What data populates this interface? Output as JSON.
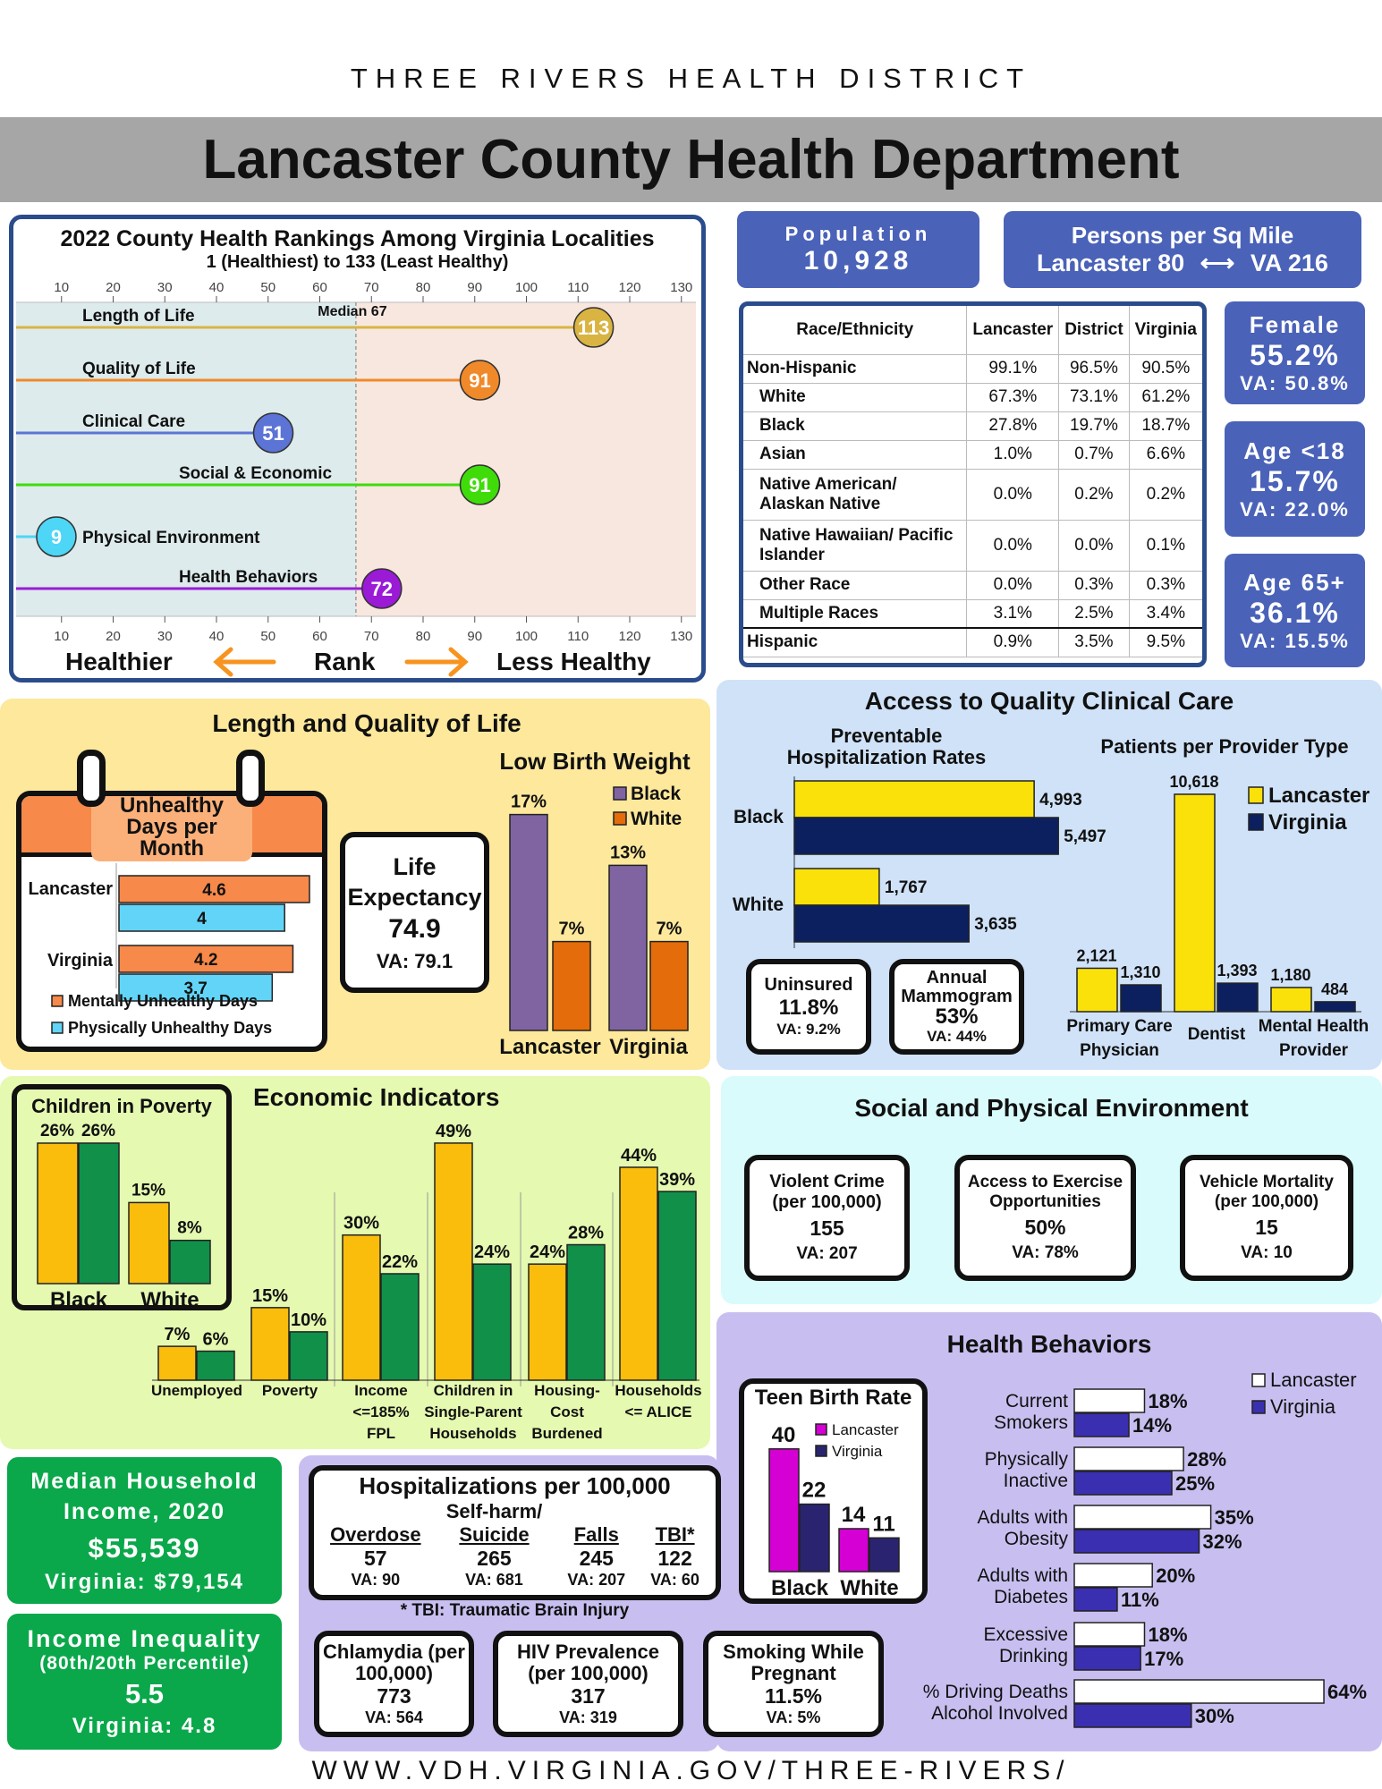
{
  "header": {
    "district": "THREE RIVERS HEALTH DISTRICT",
    "title": "Lancaster County Health Department"
  },
  "footer": {
    "url": "WWW.VDH.VIRGINIA.GOV/THREE-RIVERS/"
  },
  "population": {
    "label": "Population",
    "value": "10,928"
  },
  "density": {
    "label": "Persons per Sq Mile",
    "lancaster": "Lancaster 80",
    "arrow": "⟷",
    "va": "VA 216"
  },
  "demographics": [
    {
      "label": "Female",
      "value": "55.2%",
      "va": "VA: 50.8%"
    },
    {
      "label": "Age <18",
      "value": "15.7%",
      "va": "VA: 22.0%"
    },
    {
      "label": "Age 65+",
      "value": "36.1%",
      "va": "VA: 15.5%"
    }
  ],
  "race_table": {
    "headers": [
      "Race/Ethnicity",
      "Lancaster",
      "District",
      "Virginia"
    ],
    "rows": [
      {
        "label": "Non-Hispanic",
        "values": [
          "99.1%",
          "96.5%",
          "90.5%"
        ],
        "indent": false
      },
      {
        "label": "White",
        "values": [
          "67.3%",
          "73.1%",
          "61.2%"
        ],
        "indent": true
      },
      {
        "label": "Black",
        "values": [
          "27.8%",
          "19.7%",
          "18.7%"
        ],
        "indent": true
      },
      {
        "label": "Asian",
        "values": [
          "1.0%",
          "0.7%",
          "6.6%"
        ],
        "indent": true
      },
      {
        "label": "Native American/ Alaskan Native",
        "values": [
          "0.0%",
          "0.2%",
          "0.2%"
        ],
        "indent": true
      },
      {
        "label": "Native Hawaiian/ Pacific Islander",
        "values": [
          "0.0%",
          "0.0%",
          "0.1%"
        ],
        "indent": true
      },
      {
        "label": "Other Race",
        "values": [
          "0.0%",
          "0.3%",
          "0.3%"
        ],
        "indent": true
      },
      {
        "label": "Multiple Races",
        "values": [
          "3.1%",
          "2.5%",
          "3.4%"
        ],
        "indent": true
      },
      {
        "label": "Hispanic",
        "values": [
          "0.9%",
          "3.5%",
          "9.5%"
        ],
        "indent": false
      }
    ]
  },
  "rankings": {
    "legend_left": "Healthier",
    "legend_center": "Rank",
    "legend_right": "Less Healthy",
    "arrow_color": "#f7931e"
  },
  "length_quality": {
    "title": "Length and Quality of Life",
    "life_expectancy": {
      "label": "Life Expectancy",
      "value": "74.9",
      "va": "VA: 79.1"
    }
  },
  "clinical_care": {
    "title": "Access to Quality Clinical Care",
    "uninsured": {
      "label": "Uninsured",
      "value": "11.8%",
      "va": "VA: 9.2%"
    },
    "mammogram": {
      "label": "Annual Mammogram",
      "value": "53%",
      "va": "VA: 44%"
    }
  },
  "economic": {
    "title": "Economic Indicators"
  },
  "social_env": {
    "title": "Social and Physical Environment",
    "items": [
      {
        "label": "Violent Crime (per 100,000)",
        "value": "155",
        "va": "VA: 207"
      },
      {
        "label": "Access to Exercise Opportunities",
        "value": "50%",
        "va": "VA: 78%"
      },
      {
        "label": "Vehicle Mortality (per 100,000)",
        "value": "15",
        "va": "VA: 10"
      }
    ]
  },
  "income": {
    "label": "Median Household Income, 2020",
    "value": "$55,539",
    "va": "Virginia: $79,154"
  },
  "inequality": {
    "label": "Income Inequality",
    "sub": "(80th/20th Percentile)",
    "value": "5.5",
    "va": "Virginia: 4.8"
  },
  "hospitalizations": {
    "title": "Hospitalizations per 100,000",
    "note": "* TBI: Traumatic Brain Injury",
    "items": [
      {
        "top": "",
        "label": "Overdose",
        "value": "57",
        "va": "VA: 90"
      },
      {
        "top": "Self-harm/",
        "label": "Suicide",
        "value": "265",
        "va": "VA: 681"
      },
      {
        "top": "",
        "label": "Falls",
        "value": "245",
        "va": "VA: 207"
      },
      {
        "top": "",
        "label": "TBI*",
        "value": "122",
        "va": "VA: 60"
      }
    ]
  },
  "other_boxes": [
    {
      "label": "Chlamydia (per 100,000)",
      "value": "773",
      "va": "VA: 564"
    },
    {
      "label": "HIV Prevalence (per 100,000)",
      "value": "317",
      "va": "VA: 319"
    },
    {
      "label": "Smoking While Pregnant",
      "value": "11.5%",
      "va": "VA: 5%"
    }
  ],
  "health_behaviors": {
    "title": "Health Behaviors"
  },
  "chart_data": [
    {
      "type": "bar",
      "orientation": "horizontal-lollipop",
      "title": "2022 County Health Rankings Among Virginia Localities",
      "subtitle": "1 (Healthiest) to 133 (Least Healthy)",
      "categories": [
        "Length of Life",
        "Quality of Life",
        "Clinical Care",
        "Social & Economic",
        "Physical Environment",
        "Health Behaviors"
      ],
      "values": [
        113,
        91,
        51,
        91,
        9,
        72
      ],
      "colors": [
        "#d9b443",
        "#f0892a",
        "#5b74d6",
        "#3fdc0a",
        "#4dd6f5",
        "#9a1ad6"
      ],
      "median": 67,
      "median_label": "Median 67",
      "xlim": [
        1,
        133
      ],
      "xticks": [
        10,
        20,
        30,
        40,
        50,
        60,
        70,
        80,
        90,
        100,
        110,
        120,
        130
      ]
    },
    {
      "type": "bar",
      "orientation": "horizontal",
      "title": "Unhealthy Days per Month",
      "categories": [
        "Lancaster",
        "Virginia"
      ],
      "series": [
        {
          "name": "Mentally Unhealthy Days",
          "values": [
            4.6,
            4.2
          ],
          "color": "#f7894a"
        },
        {
          "name": "Physically Unhealthy Days",
          "values": [
            4.0,
            3.7
          ],
          "color": "#62d4f8"
        }
      ]
    },
    {
      "type": "bar",
      "title": "Low Birth Weight",
      "categories": [
        "Lancaster",
        "Virginia"
      ],
      "series": [
        {
          "name": "Black",
          "values": [
            17,
            13
          ],
          "labels": [
            "17%",
            "13%"
          ],
          "color": "#8064a2"
        },
        {
          "name": "White",
          "values": [
            7,
            7
          ],
          "labels": [
            "7%",
            "7%"
          ],
          "color": "#e46c0a"
        }
      ]
    },
    {
      "type": "bar",
      "orientation": "horizontal",
      "title": "Preventable Hospitalization Rates",
      "categories": [
        "Black",
        "White"
      ],
      "series": [
        {
          "name": "Lancaster",
          "values": [
            4993,
            1767
          ],
          "labels": [
            "4,993",
            "1,767"
          ],
          "color": "#fbe10a"
        },
        {
          "name": "Virginia",
          "values": [
            5497,
            3635
          ],
          "labels": [
            "5,497",
            "3,635"
          ],
          "color": "#0c2060"
        }
      ]
    },
    {
      "type": "bar",
      "title": "Patients per Provider Type",
      "categories": [
        [
          "Primary Care",
          "Physician"
        ],
        [
          "Dentist"
        ],
        [
          "Mental Health",
          "Provider"
        ]
      ],
      "series": [
        {
          "name": "Lancaster",
          "values": [
            2121,
            10618,
            1180
          ],
          "labels": [
            "2,121",
            "10,618",
            "1,180"
          ],
          "color": "#fbe10a"
        },
        {
          "name": "Virginia",
          "values": [
            1310,
            1393,
            484
          ],
          "labels": [
            "1,310",
            "1,393",
            "484"
          ],
          "color": "#0c2060"
        }
      ],
      "legend": "top-right"
    },
    {
      "type": "bar",
      "title": "Children in Poverty",
      "categories": [
        "Black",
        "White"
      ],
      "series": [
        {
          "name": "Lancaster",
          "values": [
            26,
            15
          ],
          "labels": [
            "26%",
            "15%"
          ],
          "color": "#fbbd0c"
        },
        {
          "name": "Virginia",
          "values": [
            26,
            8
          ],
          "labels": [
            "26%",
            "8%"
          ],
          "color": "#11904a"
        }
      ]
    },
    {
      "type": "bar",
      "title": "Economic Indicators",
      "categories": [
        [
          "Unemployed"
        ],
        [
          "Poverty"
        ],
        [
          "Income",
          "<=185%",
          "FPL"
        ],
        [
          "Children in",
          "Single-Parent",
          "Households"
        ],
        [
          "Housing-",
          "Cost",
          "Burdened"
        ],
        [
          "Households",
          "<= ALICE"
        ]
      ],
      "series": [
        {
          "name": "Lancaster",
          "values": [
            7,
            15,
            30,
            49,
            24,
            44
          ],
          "labels": [
            "7%",
            "15%",
            "30%",
            "49%",
            "24%",
            "44%"
          ],
          "color": "#fbbd0c"
        },
        {
          "name": "Virginia",
          "values": [
            6,
            10,
            22,
            24,
            28,
            39
          ],
          "labels": [
            "6%",
            "10%",
            "22%",
            "24%",
            "28%",
            "39%"
          ],
          "color": "#11904a"
        }
      ]
    },
    {
      "type": "bar",
      "title": "Teen Birth Rate",
      "categories": [
        "Black",
        "White"
      ],
      "series": [
        {
          "name": "Lancaster",
          "values": [
            40,
            14
          ],
          "color": "#d400d4"
        },
        {
          "name": "Virginia",
          "values": [
            22,
            11
          ],
          "color": "#2a2470"
        }
      ]
    },
    {
      "type": "bar",
      "orientation": "horizontal",
      "title": "Health Behaviors",
      "categories": [
        [
          "Current",
          "Smokers"
        ],
        [
          "Physically",
          "Inactive"
        ],
        [
          "Adults with",
          "Obesity"
        ],
        [
          "Adults with",
          "Diabetes"
        ],
        [
          "Excessive",
          "Drinking"
        ],
        [
          "% Driving Deaths",
          "Alcohol Involved"
        ]
      ],
      "series": [
        {
          "name": "Lancaster",
          "values": [
            18,
            28,
            35,
            20,
            18,
            64
          ],
          "labels": [
            "18%",
            "28%",
            "35%",
            "20%",
            "18%",
            "64%"
          ],
          "color": "#ffffff"
        },
        {
          "name": "Virginia",
          "values": [
            14,
            25,
            32,
            11,
            17,
            30
          ],
          "labels": [
            "14%",
            "25%",
            "32%",
            "11%",
            "17%",
            "30%"
          ],
          "color": "#3a2fb0"
        }
      ],
      "legend": "top-right"
    }
  ]
}
